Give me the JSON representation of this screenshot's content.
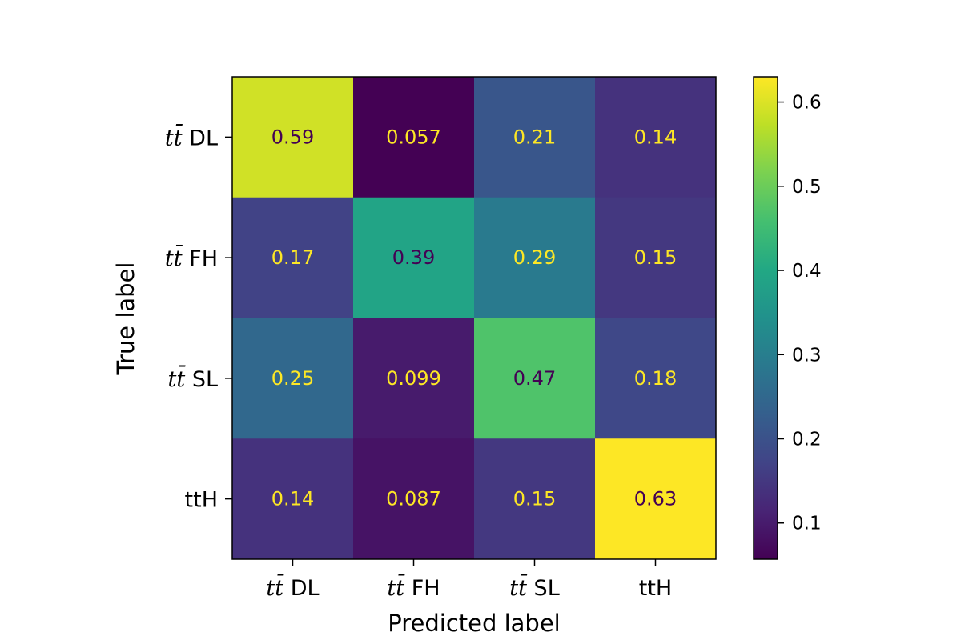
{
  "chart_data": {
    "type": "heatmap",
    "title": "",
    "xlabel": "Predicted label",
    "ylabel": "True label",
    "x_categories": [
      {
        "pre": "t",
        "bar": "t̄",
        "post": " DL"
      },
      {
        "pre": "t",
        "bar": "t̄",
        "post": " FH"
      },
      {
        "pre": "t",
        "bar": "t̄",
        "post": " SL"
      },
      {
        "pre": "",
        "bar": "",
        "post": "ttH"
      }
    ],
    "y_categories": [
      {
        "pre": "t",
        "bar": "t̄",
        "post": " DL"
      },
      {
        "pre": "t",
        "bar": "t̄",
        "post": " FH"
      },
      {
        "pre": "t",
        "bar": "t̄",
        "post": " SL"
      },
      {
        "pre": "",
        "bar": "",
        "post": "ttH"
      }
    ],
    "values": [
      [
        0.59,
        0.057,
        0.21,
        0.14
      ],
      [
        0.17,
        0.39,
        0.29,
        0.15
      ],
      [
        0.25,
        0.099,
        0.47,
        0.18
      ],
      [
        0.14,
        0.087,
        0.15,
        0.63
      ]
    ],
    "value_labels": [
      [
        "0.59",
        "0.057",
        "0.21",
        "0.14"
      ],
      [
        "0.17",
        "0.39",
        "0.29",
        "0.15"
      ],
      [
        "0.25",
        "0.099",
        "0.47",
        "0.18"
      ],
      [
        "0.14",
        "0.087",
        "0.15",
        "0.63"
      ]
    ],
    "colormap": "viridis",
    "color_range": [
      0.057,
      0.63
    ],
    "colorbar_ticks": [
      0.1,
      0.2,
      0.3,
      0.4,
      0.5,
      0.6
    ],
    "colorbar_tick_labels": [
      "0.1",
      "0.2",
      "0.3",
      "0.4",
      "0.5",
      "0.6"
    ],
    "text_color_dark": "#440154",
    "text_color_light": "#fde725",
    "grid": false,
    "legend": "colorbar-right"
  }
}
